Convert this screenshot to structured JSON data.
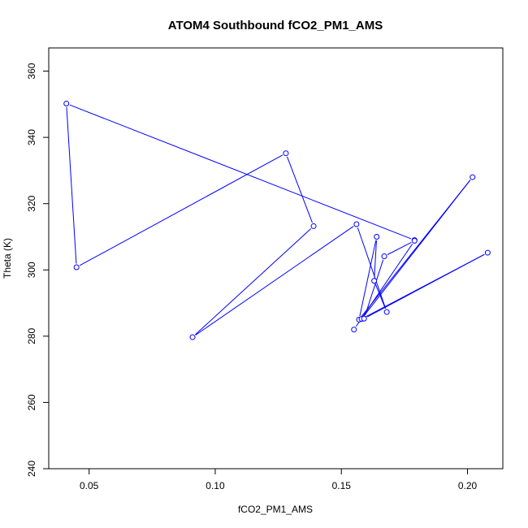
{
  "chart_data": {
    "type": "line",
    "title": "ATOM4 Southbound fCO2_PM1_AMS",
    "xlabel": "fCO2_PM1_AMS",
    "ylabel": "Theta (K)",
    "xlim": [
      0.034,
      0.214
    ],
    "ylim": [
      240,
      367
    ],
    "xticks": [
      0.05,
      0.1,
      0.15,
      0.2
    ],
    "xtick_labels": [
      "0.05",
      "0.10",
      "0.15",
      "0.20"
    ],
    "yticks": [
      240,
      260,
      280,
      300,
      320,
      340,
      360
    ],
    "ytick_labels": [
      "240",
      "260",
      "280",
      "300",
      "320",
      "340",
      "360"
    ],
    "grid": false,
    "marker": "open-circle",
    "color": "#0000ff",
    "points": [
      {
        "x": 0.179,
        "y": 309.0
      },
      {
        "x": 0.041,
        "y": 350.2
      },
      {
        "x": 0.045,
        "y": 300.8
      },
      {
        "x": 0.128,
        "y": 335.2
      },
      {
        "x": 0.139,
        "y": 313.2
      },
      {
        "x": 0.091,
        "y": 279.7
      },
      {
        "x": 0.156,
        "y": 313.8
      },
      {
        "x": 0.168,
        "y": 287.3
      },
      {
        "x": 0.163,
        "y": 296.7
      },
      {
        "x": 0.164,
        "y": 310.0
      },
      {
        "x": 0.157,
        "y": 285.0
      },
      {
        "x": 0.202,
        "y": 328.0
      },
      {
        "x": 0.158,
        "y": 285.2
      },
      {
        "x": 0.208,
        "y": 305.2
      },
      {
        "x": 0.159,
        "y": 285.3
      },
      {
        "x": 0.167,
        "y": 304.1
      },
      {
        "x": 0.179,
        "y": 308.8
      },
      {
        "x": 0.155,
        "y": 282.0
      }
    ]
  }
}
